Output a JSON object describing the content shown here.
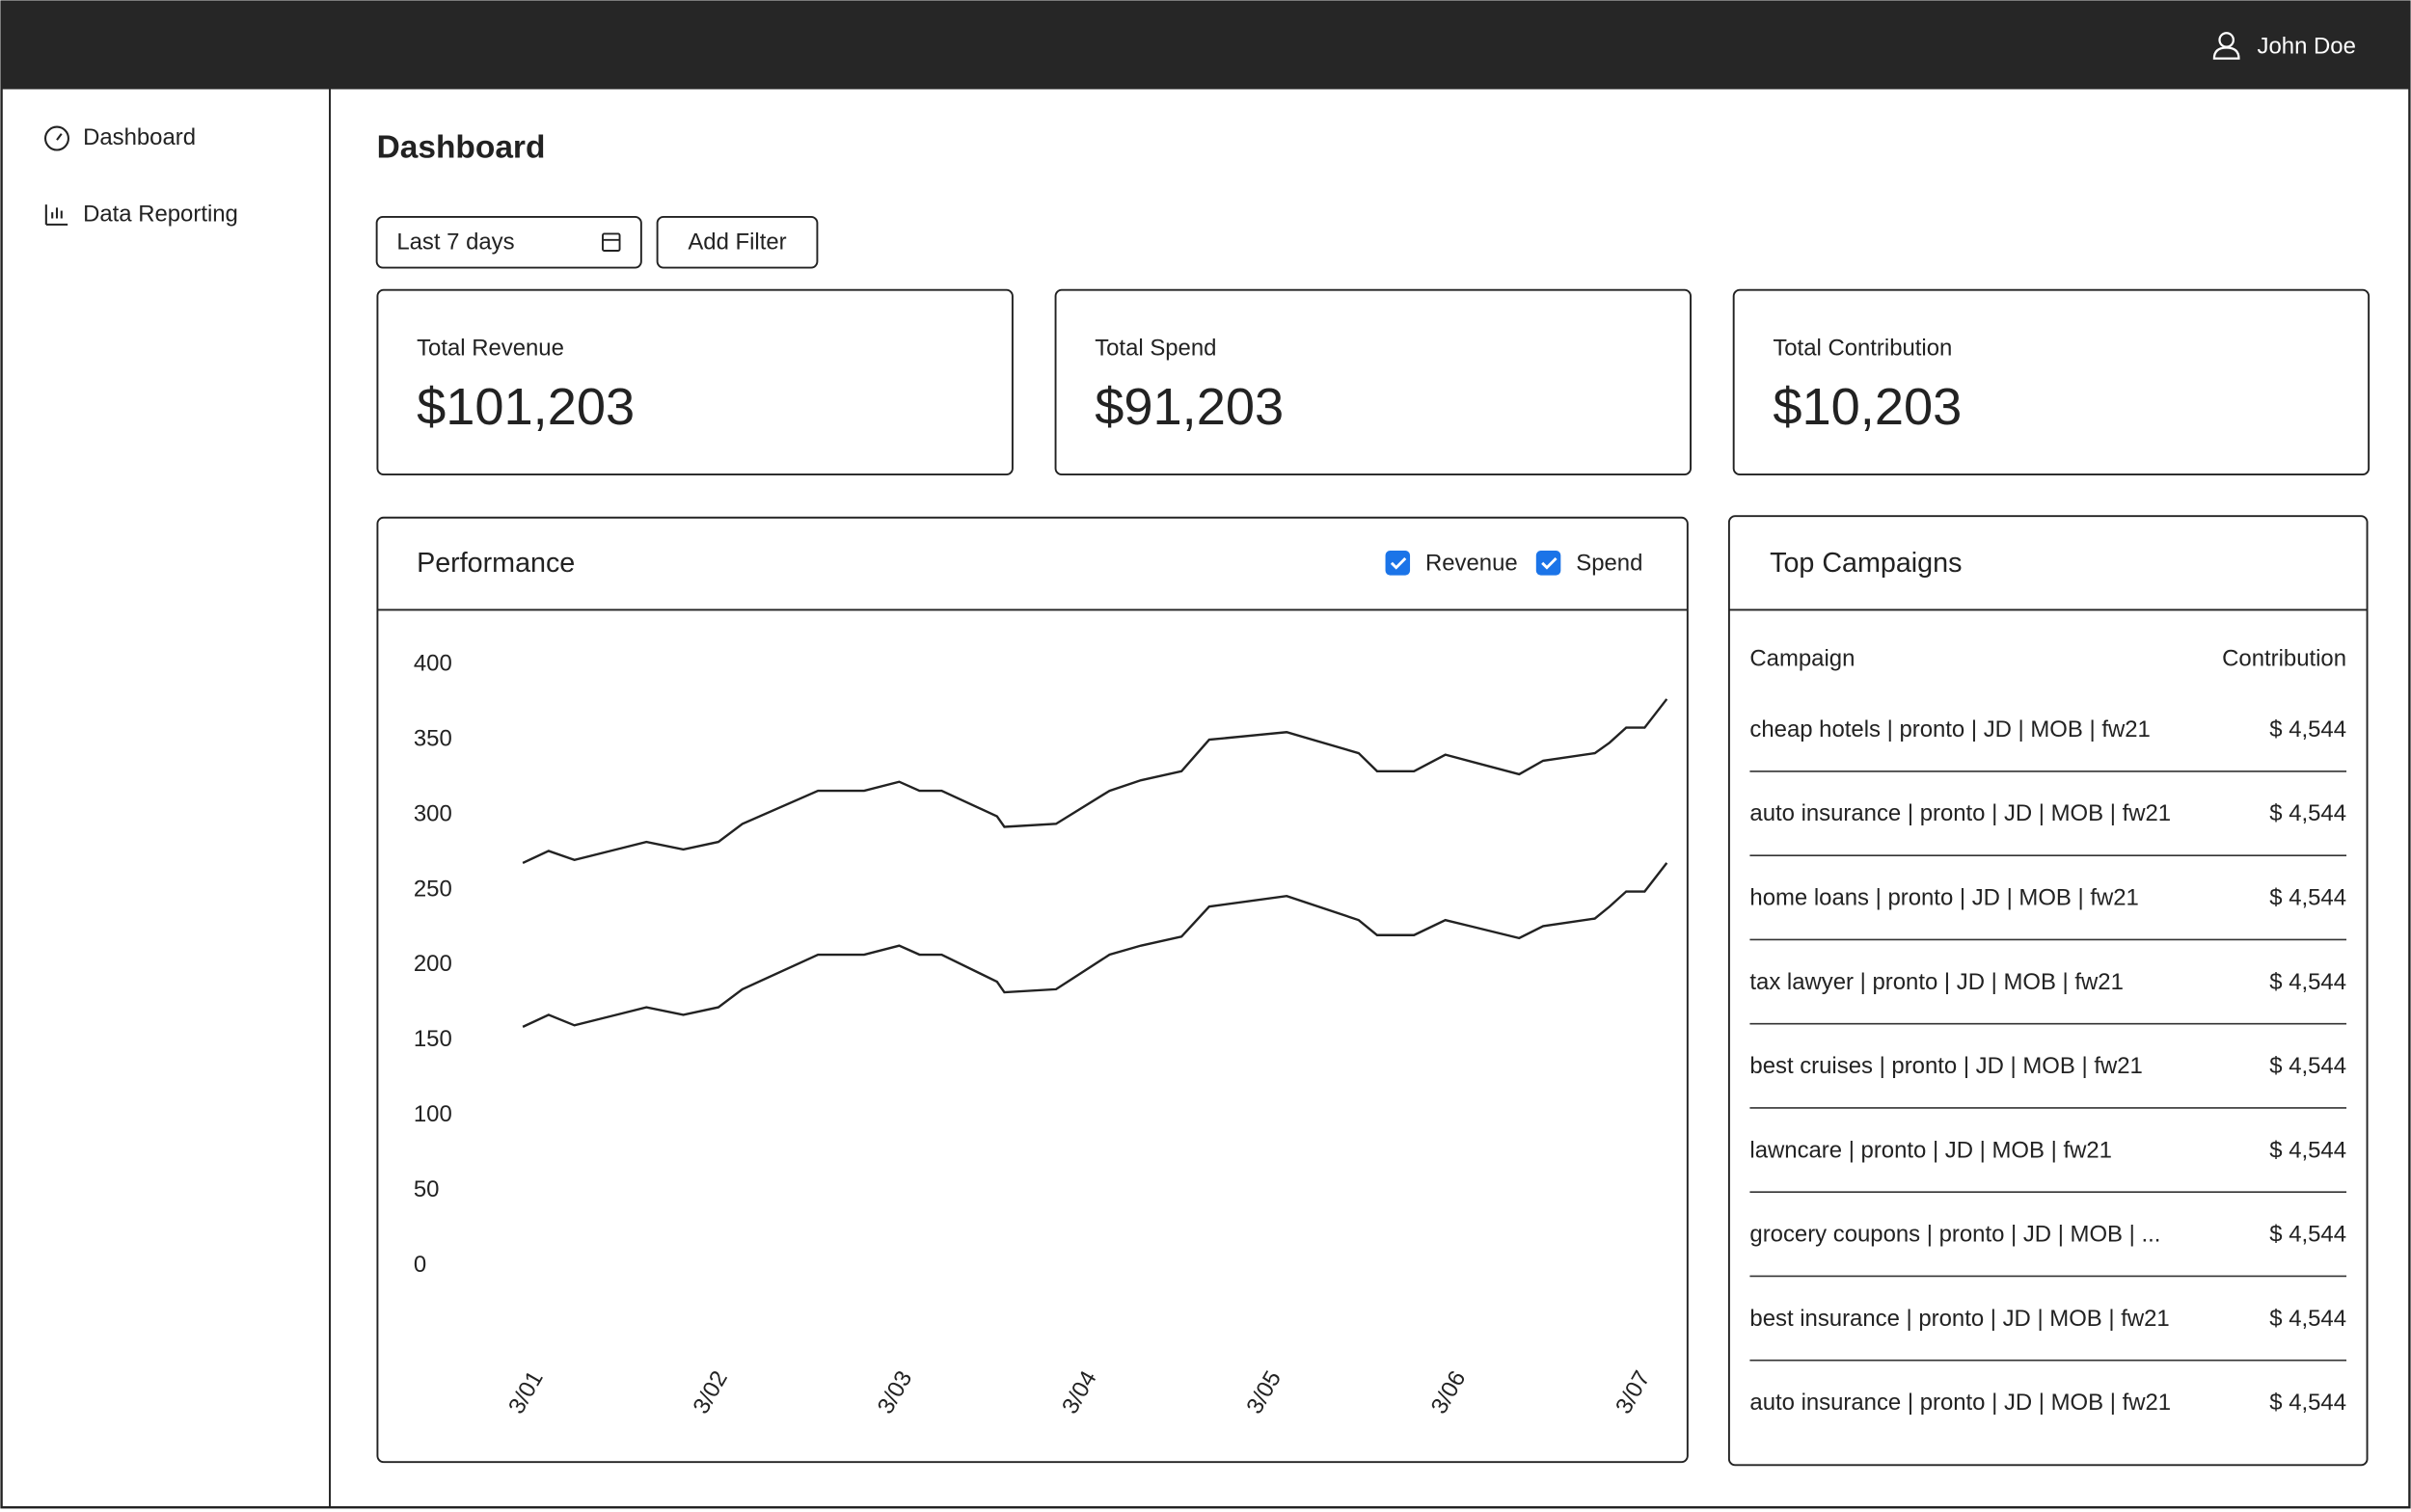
{
  "header": {
    "user": "John Doe"
  },
  "sidebar": {
    "items": [
      "Dashboard",
      "Data Reporting"
    ]
  },
  "page_title": "Dashboard",
  "filters": {
    "date_range": "Last 7 days",
    "add_filter": "Add Filter"
  },
  "kpis": [
    {
      "label": "Total Revenue",
      "value": "$101,203"
    },
    {
      "label": "Total Spend",
      "value": "$91,203"
    },
    {
      "label": "Total Contribution",
      "value": "$10,203"
    }
  ],
  "chart_data": {
    "type": "line",
    "title": "Performance",
    "x": [
      1.0,
      1.14,
      1.28,
      1.67,
      1.87,
      2.06,
      2.19,
      2.6,
      2.85,
      3.04,
      3.15,
      3.27,
      3.57,
      3.61,
      3.89,
      4.18,
      4.35,
      4.57,
      4.72,
      5.14,
      5.53,
      5.63,
      5.83,
      6.0,
      6.4,
      6.53,
      6.81,
      6.89,
      6.98,
      7.08,
      7.2
    ],
    "xlim": [
      1,
      7.2
    ],
    "xticks": [
      {
        "value": 1,
        "label": "3/01"
      },
      {
        "value": 2,
        "label": "3/02"
      },
      {
        "value": 3,
        "label": "3/03"
      },
      {
        "value": 4,
        "label": "3/04"
      },
      {
        "value": 5,
        "label": "3/05"
      },
      {
        "value": 6,
        "label": "3/06"
      },
      {
        "value": 7,
        "label": "3/07"
      }
    ],
    "ylim": [
      0,
      400
    ],
    "yticks": [
      0,
      50,
      100,
      150,
      200,
      250,
      300,
      350,
      400
    ],
    "series": [
      {
        "name": "Revenue",
        "color": "#222222",
        "values": [
          268,
          276,
          270,
          282,
          277,
          282,
          294,
          316,
          316,
          322,
          316,
          316,
          299,
          292,
          294,
          316,
          323,
          329,
          350,
          355,
          341,
          329,
          329,
          340,
          327,
          336,
          341,
          348,
          358,
          358,
          377
        ]
      },
      {
        "name": "Spend",
        "color": "#222222",
        "values": [
          159,
          167,
          160,
          172,
          167,
          172,
          184,
          207,
          207,
          213,
          207,
          207,
          189,
          182,
          184,
          207,
          213,
          219,
          239,
          246,
          230,
          220,
          220,
          230,
          218,
          226,
          231,
          239,
          249,
          249,
          268
        ]
      }
    ]
  },
  "campaigns": {
    "title": "Top Campaigns",
    "columns": [
      "Campaign",
      "Contribution"
    ],
    "rows": [
      [
        "cheap hotels | pronto | JD | MOB | fw21",
        "$ 4,544"
      ],
      [
        "auto insurance | pronto | JD | MOB | fw21",
        "$ 4,544"
      ],
      [
        "home loans | pronto | JD | MOB | fw21",
        "$ 4,544"
      ],
      [
        "tax lawyer | pronto | JD | MOB | fw21",
        "$ 4,544"
      ],
      [
        "best cruises | pronto | JD | MOB | fw21",
        "$ 4,544"
      ],
      [
        "lawncare | pronto | JD | MOB | fw21",
        "$ 4,544"
      ],
      [
        "grocery coupons | pronto | JD | MOB | ...",
        "$ 4,544"
      ],
      [
        "best insurance | pronto | JD | MOB | fw21",
        "$ 4,544"
      ],
      [
        "auto insurance | pronto | JD | MOB | fw21",
        "$ 4,544"
      ]
    ]
  }
}
